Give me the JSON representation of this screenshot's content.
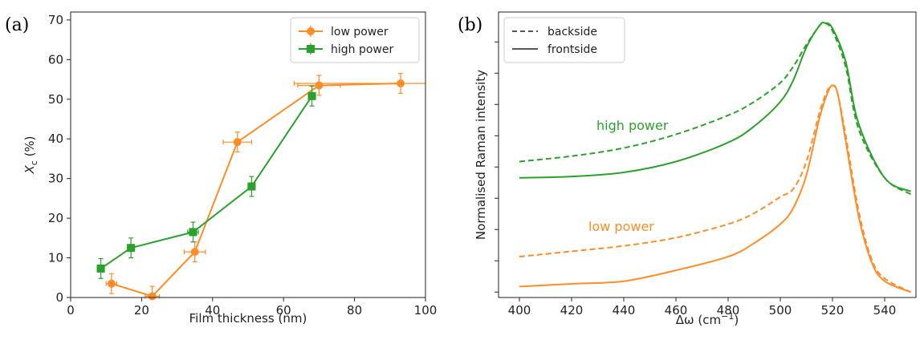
{
  "chart_data": [
    {
      "panel_label": "(a)",
      "type": "line",
      "xlabel": "Film thickness (nm)",
      "ylabel": "X_c (%)",
      "ylabel_main": "X",
      "ylabel_sub": "c",
      "ylabel_rest": " (%)",
      "xlim": [
        0,
        100
      ],
      "ylim": [
        0,
        72
      ],
      "xticks": [
        0,
        20,
        40,
        60,
        80,
        100
      ],
      "yticks": [
        0,
        10,
        20,
        30,
        40,
        50,
        60,
        70
      ],
      "grid": false,
      "legend_position": "top-right",
      "series": [
        {
          "name": "low power",
          "color": "#ff8c27",
          "marker": "circle",
          "x": [
            11.5,
            23,
            35,
            47,
            70,
            93
          ],
          "y": [
            3.5,
            0.3,
            11.5,
            39.2,
            53.5,
            54
          ],
          "xerr": [
            1.5,
            2,
            3,
            4,
            6,
            30
          ],
          "yerr": [
            2.5,
            2.5,
            2.5,
            2.5,
            2.5,
            2.5
          ]
        },
        {
          "name": "high power",
          "color": "#2ca02c",
          "marker": "square",
          "x": [
            8.5,
            17,
            34.5,
            51,
            68
          ],
          "y": [
            7.3,
            12.5,
            16.5,
            28,
            50.8
          ],
          "xerr": [
            1,
            1,
            1.5,
            1,
            1
          ],
          "yerr": [
            2.5,
            2.5,
            2.5,
            2.5,
            2.5
          ]
        }
      ]
    },
    {
      "panel_label": "(b)",
      "type": "line",
      "xlabel": "Δω (cm⁻¹)",
      "xlabel_main": "Δω",
      "xlabel_unit": " (cm",
      "xlabel_exp": "−1",
      "xlabel_close": ")",
      "ylabel": "Normalised Raman intensity",
      "xlim": [
        392,
        552
      ],
      "ylim": [
        0,
        1.05
      ],
      "xticks": [
        400,
        420,
        440,
        460,
        480,
        500,
        520,
        540
      ],
      "ytick_labels_shown": false,
      "grid": false,
      "legend_position": "top-left",
      "legend": [
        {
          "name": "backside",
          "style": "dashed"
        },
        {
          "name": "frontside",
          "style": "solid"
        }
      ],
      "annotations": [
        {
          "text": "high power",
          "color": "#2ca02c"
        },
        {
          "text": "low power",
          "color": "#ff8c27"
        }
      ],
      "series": [
        {
          "group": "high power",
          "style": "dashed",
          "color": "#2ca02c",
          "x": [
            400,
            420,
            440,
            460,
            480,
            490,
            500,
            505,
            510,
            515,
            517,
            520,
            525,
            530,
            540,
            550
          ],
          "y": [
            0.5,
            0.52,
            0.55,
            0.6,
            0.67,
            0.72,
            0.79,
            0.85,
            0.93,
            1.0,
            1.01,
            0.98,
            0.85,
            0.62,
            0.44,
            0.38
          ]
        },
        {
          "group": "high power",
          "style": "solid",
          "color": "#2ca02c",
          "x": [
            400,
            420,
            440,
            460,
            480,
            490,
            500,
            505,
            510,
            515,
            517,
            520,
            525,
            530,
            540,
            550
          ],
          "y": [
            0.44,
            0.445,
            0.46,
            0.5,
            0.57,
            0.63,
            0.72,
            0.8,
            0.92,
            1.0,
            1.01,
            0.99,
            0.87,
            0.64,
            0.44,
            0.39
          ]
        },
        {
          "group": "low power",
          "style": "dashed",
          "color": "#ff8c27",
          "x": [
            400,
            420,
            440,
            460,
            480,
            490,
            500,
            505,
            510,
            515,
            518,
            520,
            522,
            525,
            530,
            535,
            540,
            550
          ],
          "y": [
            0.15,
            0.17,
            0.19,
            0.22,
            0.27,
            0.31,
            0.37,
            0.4,
            0.5,
            0.68,
            0.76,
            0.78,
            0.75,
            0.6,
            0.32,
            0.14,
            0.07,
            0.02
          ]
        },
        {
          "group": "low power",
          "style": "solid",
          "color": "#ff8c27",
          "x": [
            400,
            420,
            440,
            460,
            480,
            490,
            500,
            505,
            510,
            515,
            518,
            520,
            522,
            525,
            530,
            535,
            540,
            550
          ],
          "y": [
            0.04,
            0.05,
            0.06,
            0.1,
            0.15,
            0.2,
            0.27,
            0.33,
            0.45,
            0.66,
            0.75,
            0.78,
            0.75,
            0.58,
            0.3,
            0.13,
            0.06,
            0.02
          ]
        }
      ]
    }
  ]
}
